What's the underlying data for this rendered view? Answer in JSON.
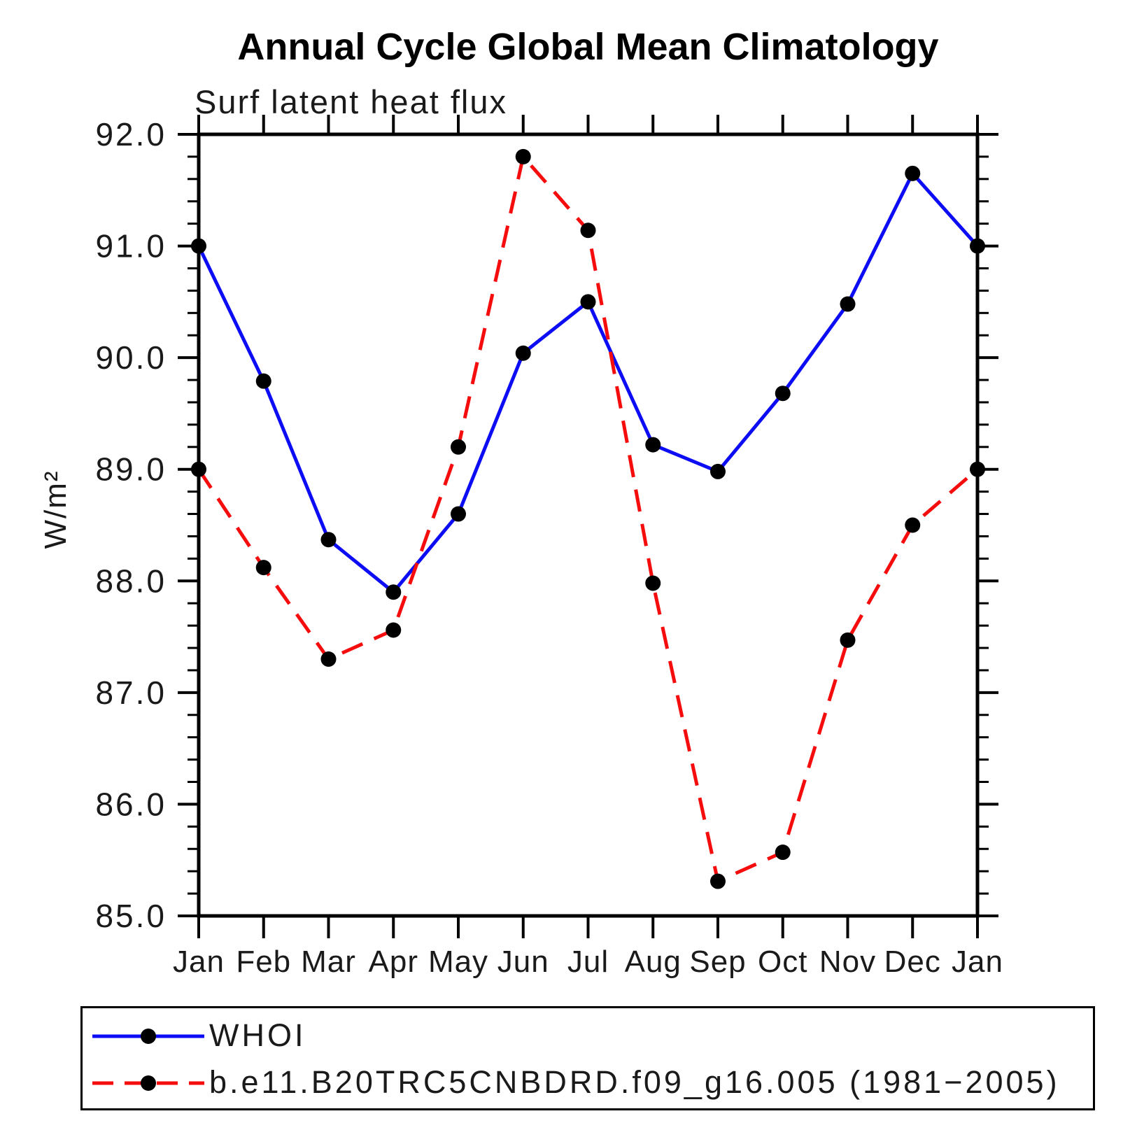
{
  "figure": {
    "title": "Annual Cycle Global Mean Climatology",
    "subtitle": "Surf latent heat flux",
    "y_axis_title": "W/m²"
  },
  "chart_data": {
    "type": "line",
    "title": "Annual Cycle Global Mean Climatology",
    "subtitle": "Surf latent heat flux",
    "xlabel": "",
    "ylabel": "W/m²",
    "categories": [
      "Jan",
      "Feb",
      "Mar",
      "Apr",
      "May",
      "Jun",
      "Jul",
      "Aug",
      "Sep",
      "Oct",
      "Nov",
      "Dec",
      "Jan"
    ],
    "ylim": [
      85.0,
      92.0
    ],
    "ytick_interval": 1.0,
    "yminor_interval": 0.2,
    "ytick_labels": [
      "85.0",
      "86.0",
      "87.0",
      "88.0",
      "89.0",
      "90.0",
      "91.0",
      "92.0"
    ],
    "grid": false,
    "legend_position": "bottom-left-box",
    "marker": {
      "shape": "circle",
      "color": "#000000"
    },
    "series": [
      {
        "name": "WHOI",
        "color": "#0d0df5",
        "line_style": "solid",
        "values": [
          91.0,
          89.79,
          88.37,
          87.9,
          88.6,
          90.04,
          90.5,
          89.22,
          88.98,
          89.68,
          90.48,
          91.65,
          91.0
        ]
      },
      {
        "name": "b.e11.B20TRC5CNBDRD.f09_g16.005 (1981−2005)",
        "color": "#f50d0d",
        "line_style": "dashed",
        "values": [
          89.0,
          88.12,
          87.3,
          87.56,
          89.2,
          91.8,
          91.14,
          87.98,
          85.31,
          85.57,
          87.47,
          88.5,
          89.0
        ]
      }
    ]
  }
}
